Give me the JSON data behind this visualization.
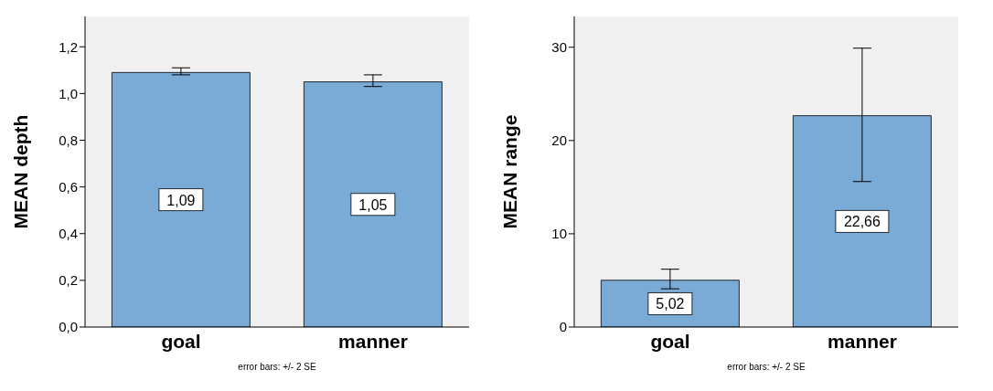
{
  "chart_data": [
    {
      "type": "bar",
      "ylabel": "MEAN depth",
      "categories": [
        "goal",
        "manner"
      ],
      "values": [
        1.09,
        1.05
      ],
      "value_labels": [
        "1,09",
        "1,05"
      ],
      "errors": [
        [
          1.08,
          1.11
        ],
        [
          1.03,
          1.08
        ]
      ],
      "color": "#7aaad6",
      "ylim": [
        0,
        1.33
      ],
      "yticks": [
        {
          "value": 0,
          "label": "0,0"
        },
        {
          "value": 0.2,
          "label": "0,2"
        },
        {
          "value": 0.4,
          "label": "0,4"
        },
        {
          "value": 0.6,
          "label": "0,6"
        },
        {
          "value": 0.8,
          "label": "0,8"
        },
        {
          "value": 1.0,
          "label": "1,0"
        },
        {
          "value": 1.2,
          "label": "1,2"
        }
      ],
      "annotations": [
        "error bars: +/- 2 SE"
      ]
    },
    {
      "type": "bar",
      "ylabel": "MEAN range",
      "categories": [
        "goal",
        "manner"
      ],
      "values": [
        5.02,
        22.66
      ],
      "value_labels": [
        "5,02",
        "22,66"
      ],
      "errors": [
        [
          4.1,
          6.2
        ],
        [
          15.6,
          29.9
        ]
      ],
      "color": "#7aaad6",
      "ylim": [
        0,
        33.3
      ],
      "yticks": [
        0,
        10,
        20,
        30
      ],
      "annotations": [
        "error bars: +/- 2 SE"
      ]
    }
  ]
}
